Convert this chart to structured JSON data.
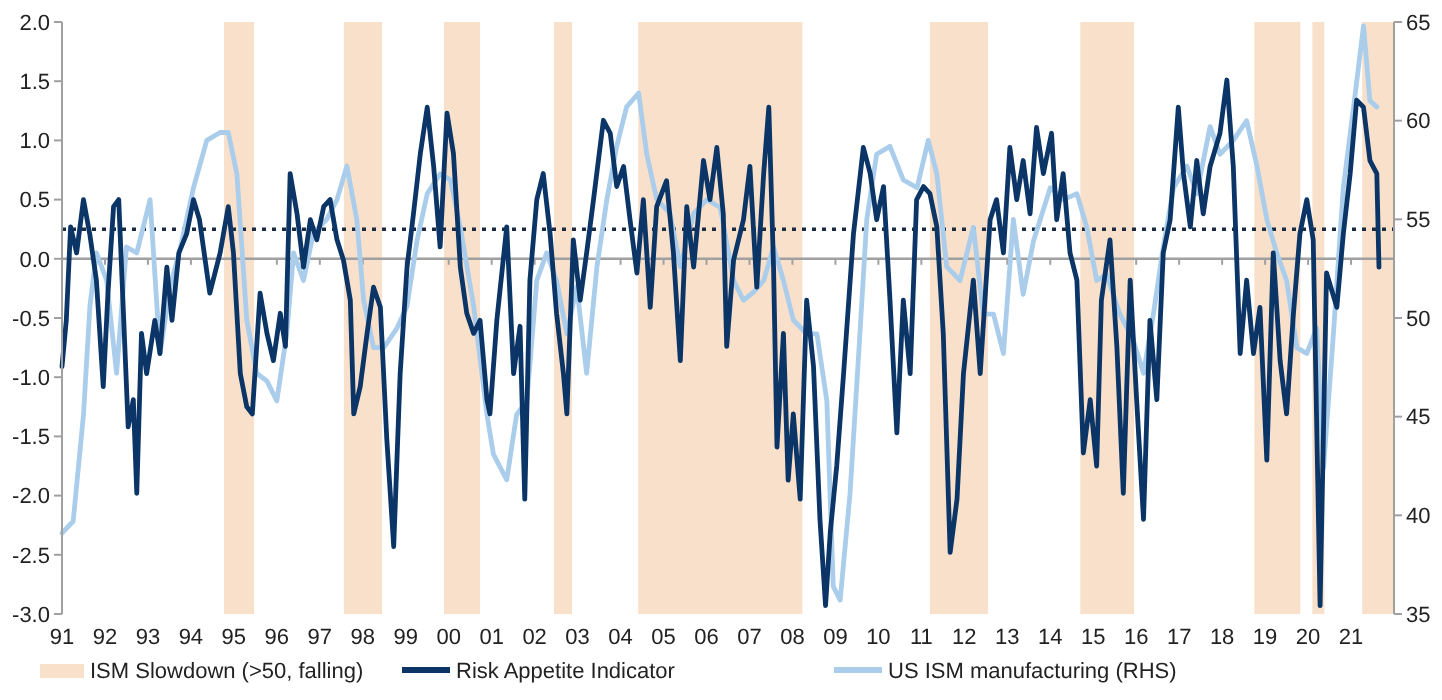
{
  "chart_data": {
    "type": "line",
    "xlim": [
      1991,
      2022
    ],
    "xticks": [
      {
        "value": 1991,
        "label": "91"
      },
      {
        "value": 1992,
        "label": "92"
      },
      {
        "value": 1993,
        "label": "93"
      },
      {
        "value": 1994,
        "label": "94"
      },
      {
        "value": 1995,
        "label": "95"
      },
      {
        "value": 1996,
        "label": "96"
      },
      {
        "value": 1997,
        "label": "97"
      },
      {
        "value": 1998,
        "label": "98"
      },
      {
        "value": 1999,
        "label": "99"
      },
      {
        "value": 2000,
        "label": "00"
      },
      {
        "value": 2001,
        "label": "01"
      },
      {
        "value": 2002,
        "label": "02"
      },
      {
        "value": 2003,
        "label": "03"
      },
      {
        "value": 2004,
        "label": "04"
      },
      {
        "value": 2005,
        "label": "05"
      },
      {
        "value": 2006,
        "label": "06"
      },
      {
        "value": 2007,
        "label": "07"
      },
      {
        "value": 2008,
        "label": "08"
      },
      {
        "value": 2009,
        "label": "09"
      },
      {
        "value": 2010,
        "label": "10"
      },
      {
        "value": 2011,
        "label": "11"
      },
      {
        "value": 2012,
        "label": "12"
      },
      {
        "value": 2013,
        "label": "13"
      },
      {
        "value": 2014,
        "label": "14"
      },
      {
        "value": 2015,
        "label": "15"
      },
      {
        "value": 2016,
        "label": "16"
      },
      {
        "value": 2017,
        "label": "17"
      },
      {
        "value": 2018,
        "label": "18"
      },
      {
        "value": 2019,
        "label": "19"
      },
      {
        "value": 2020,
        "label": "20"
      },
      {
        "value": 2021,
        "label": "21"
      }
    ],
    "ylim": [
      -3,
      2
    ],
    "yticks": [
      {
        "value": -3,
        "label": "-3.0"
      },
      {
        "value": -2.5,
        "label": "-2.5"
      },
      {
        "value": -2,
        "label": "-2.0"
      },
      {
        "value": -1.5,
        "label": "-1.5"
      },
      {
        "value": -1,
        "label": "-1.0"
      },
      {
        "value": -0.5,
        "label": "-0.5"
      },
      {
        "value": 0,
        "label": "0.0"
      },
      {
        "value": 0.5,
        "label": "0.5"
      },
      {
        "value": 1,
        "label": "1.0"
      },
      {
        "value": 1.5,
        "label": "1.5"
      },
      {
        "value": 2,
        "label": "2.0"
      }
    ],
    "y2lim": [
      35,
      65
    ],
    "y2ticks": [
      35,
      40,
      45,
      50,
      55,
      60,
      65
    ],
    "legend": "bottom",
    "grid": false,
    "bands": [
      {
        "axis": "x",
        "from": 1994.77,
        "to": 1995.47,
        "label": "ISM Slowdown (>50, falling)",
        "color": "#f9e0cb"
      },
      {
        "axis": "x",
        "from": 1997.56,
        "to": 1998.45,
        "color": "#f9e0cb"
      },
      {
        "axis": "x",
        "from": 1999.89,
        "to": 2000.73,
        "color": "#f9e0cb"
      },
      {
        "axis": "x",
        "from": 2002.45,
        "to": 2002.87,
        "color": "#f9e0cb"
      },
      {
        "axis": "x",
        "from": 2004.41,
        "to": 2008.23,
        "color": "#f9e0cb"
      },
      {
        "axis": "x",
        "from": 2011.2,
        "to": 2012.55,
        "color": "#f9e0cb"
      },
      {
        "axis": "x",
        "from": 2014.7,
        "to": 2015.95,
        "color": "#f9e0cb"
      },
      {
        "axis": "x",
        "from": 2018.75,
        "to": 2019.82,
        "color": "#f9e0cb"
      },
      {
        "axis": "x",
        "from": 2020.1,
        "to": 2020.38,
        "color": "#f9e0cb"
      },
      {
        "axis": "x",
        "from": 2021.26,
        "to": 2022,
        "color": "#f9e0cb"
      }
    ],
    "ref_lines": [
      {
        "axis": "y",
        "value": 0,
        "color": "#a0a0a0",
        "line_style": "solid"
      },
      {
        "axis": "y",
        "value": 0.25,
        "color": "#1a2a40",
        "line_style": "dotted"
      }
    ],
    "series": [
      {
        "name": "Risk Appetite Indicator",
        "color": "#0b3566",
        "axis": "y",
        "x": [
          1991.0,
          1991.1,
          1991.2,
          1991.34,
          1991.5,
          1991.65,
          1991.8,
          1991.96,
          1992.07,
          1992.2,
          1992.32,
          1992.43,
          1992.54,
          1992.66,
          1992.74,
          1992.85,
          1992.97,
          1993.16,
          1993.28,
          1993.44,
          1993.56,
          1993.72,
          1993.9,
          1994.06,
          1994.2,
          1994.44,
          1994.68,
          1994.87,
          1994.99,
          1995.15,
          1995.3,
          1995.43,
          1995.61,
          1995.77,
          1995.92,
          1996.08,
          1996.2,
          1996.31,
          1996.47,
          1996.62,
          1996.78,
          1996.93,
          1997.09,
          1997.24,
          1997.4,
          1997.55,
          1997.71,
          1997.79,
          1997.94,
          1998.1,
          1998.25,
          1998.41,
          1998.56,
          1998.72,
          1998.87,
          1999.03,
          1999.18,
          1999.34,
          1999.5,
          1999.65,
          1999.8,
          1999.96,
          2000.11,
          2000.27,
          2000.42,
          2000.58,
          2000.73,
          2000.89,
          2000.96,
          2001.12,
          2001.35,
          2001.51,
          2001.66,
          2001.77,
          2001.89,
          2002.05,
          2002.2,
          2002.36,
          2002.51,
          2002.67,
          2002.75,
          2002.9,
          2003.06,
          2003.21,
          2003.37,
          2003.6,
          2003.76,
          2003.91,
          2004.07,
          2004.22,
          2004.38,
          2004.53,
          2004.69,
          2004.84,
          2005.07,
          2005.23,
          2005.39,
          2005.54,
          2005.7,
          2005.93,
          2006.08,
          2006.24,
          2006.39,
          2006.47,
          2006.63,
          2006.86,
          2007.01,
          2007.17,
          2007.33,
          2007.45,
          2007.56,
          2007.64,
          2007.79,
          2007.9,
          2008.02,
          2008.18,
          2008.33,
          2008.49,
          2008.64,
          2008.77,
          2008.88,
          2009.03,
          2009.19,
          2009.42,
          2009.65,
          2009.81,
          2009.96,
          2010.12,
          2010.27,
          2010.43,
          2010.58,
          2010.74,
          2010.89,
          2011.05,
          2011.2,
          2011.36,
          2011.51,
          2011.67,
          2011.83,
          2011.98,
          2012.21,
          2012.37,
          2012.6,
          2012.75,
          2012.91,
          2013.06,
          2013.22,
          2013.37,
          2013.53,
          2013.68,
          2013.84,
          2014.03,
          2014.15,
          2014.3,
          2014.46,
          2014.62,
          2014.77,
          2014.93,
          2015.08,
          2015.19,
          2015.39,
          2015.55,
          2015.7,
          2015.86,
          2016.01,
          2016.17,
          2016.32,
          2016.48,
          2016.63,
          2016.79,
          2016.98,
          2017.1,
          2017.26,
          2017.41,
          2017.56,
          2017.72,
          2017.95,
          2018.11,
          2018.26,
          2018.42,
          2018.57,
          2018.73,
          2018.88,
          2019.04,
          2019.19,
          2019.35,
          2019.5,
          2019.66,
          2019.81,
          2019.97,
          2020.12,
          2020.28,
          2020.43,
          2020.67,
          2020.82,
          2020.98,
          2021.13,
          2021.29,
          2021.44,
          2021.6,
          2021.65
        ],
        "values": [
          -0.91,
          -0.52,
          0.27,
          0.05,
          0.5,
          0.2,
          -0.18,
          -1.08,
          -0.29,
          0.44,
          0.5,
          -0.46,
          -1.42,
          -1.19,
          -1.98,
          -0.63,
          -0.97,
          -0.52,
          -0.8,
          -0.07,
          -0.52,
          0.05,
          0.21,
          0.5,
          0.33,
          -0.29,
          0.05,
          0.44,
          0.05,
          -0.97,
          -1.25,
          -1.31,
          -0.29,
          -0.63,
          -0.86,
          -0.46,
          -0.74,
          0.72,
          0.38,
          -0.07,
          0.33,
          0.16,
          0.44,
          0.5,
          0.16,
          -0.01,
          -0.35,
          -1.31,
          -1.08,
          -0.63,
          -0.24,
          -0.41,
          -1.53,
          -2.43,
          -0.97,
          -0.07,
          0.38,
          0.89,
          1.28,
          0.78,
          0.1,
          1.23,
          0.89,
          -0.07,
          -0.46,
          -0.63,
          -0.52,
          -1.19,
          -1.31,
          -0.52,
          0.27,
          -0.97,
          -0.57,
          -2.03,
          -0.18,
          0.5,
          0.72,
          0.21,
          -0.46,
          -0.97,
          -1.31,
          0.16,
          -0.35,
          0.05,
          0.5,
          1.17,
          1.06,
          0.61,
          0.78,
          0.33,
          -0.12,
          0.5,
          -0.41,
          0.44,
          0.66,
          0.05,
          -0.86,
          0.44,
          -0.07,
          0.83,
          0.5,
          0.94,
          0.38,
          -0.74,
          -0.01,
          0.33,
          0.78,
          -0.24,
          0.72,
          1.28,
          -0.07,
          -1.59,
          -0.63,
          -1.87,
          -1.31,
          -2.03,
          -0.35,
          -0.91,
          -2.2,
          -2.93,
          -2.31,
          -1.75,
          -0.97,
          0.21,
          0.94,
          0.72,
          0.33,
          0.61,
          -0.35,
          -1.47,
          -0.35,
          -0.97,
          0.5,
          0.61,
          0.55,
          0.27,
          -0.63,
          -2.48,
          -2.03,
          -0.97,
          -0.18,
          -0.97,
          0.33,
          0.5,
          0.05,
          0.94,
          0.5,
          0.83,
          0.38,
          1.11,
          0.72,
          1.06,
          0.33,
          0.72,
          0.05,
          -0.18,
          -1.64,
          -1.19,
          -1.75,
          -0.35,
          0.16,
          -0.74,
          -1.98,
          -0.18,
          -1.19,
          -2.2,
          -0.52,
          -1.19,
          0.05,
          0.33,
          1.28,
          0.72,
          0.27,
          0.83,
          0.38,
          0.78,
          1.06,
          1.51,
          0.78,
          -0.8,
          -0.18,
          -0.8,
          -0.41,
          -1.7,
          0.05,
          -0.86,
          -1.31,
          -0.46,
          0.21,
          0.5,
          0.16,
          -2.93,
          -0.12,
          -0.41,
          0.21,
          0.72,
          1.34,
          1.28,
          0.83,
          0.72,
          -0.07
        ]
      },
      {
        "name": "US ISM manufacturing (RHS)",
        "color": "#a9cdeb",
        "axis": "y2",
        "x": [
          1991.0,
          1991.26,
          1991.5,
          1991.65,
          1991.8,
          1992.04,
          1992.27,
          1992.5,
          1992.74,
          1993.05,
          1993.28,
          1993.52,
          1993.76,
          1994.06,
          1994.37,
          1994.68,
          1994.87,
          1995.07,
          1995.3,
          1995.53,
          1995.77,
          1996.0,
          1996.23,
          1996.39,
          1996.62,
          1996.85,
          1997.16,
          1997.4,
          1997.63,
          1997.86,
          1998.02,
          1998.25,
          1998.49,
          1998.8,
          1999.03,
          1999.26,
          1999.5,
          1999.8,
          2000.04,
          2000.27,
          2000.58,
          2000.89,
          2001.04,
          2001.35,
          2001.58,
          2001.82,
          2002.05,
          2002.28,
          2002.51,
          2002.75,
          2002.98,
          2003.21,
          2003.45,
          2003.68,
          2003.91,
          2004.14,
          2004.42,
          2004.61,
          2004.84,
          2005.15,
          2005.39,
          2005.7,
          2006.01,
          2006.32,
          2006.63,
          2006.86,
          2007.09,
          2007.33,
          2007.56,
          2007.79,
          2008.02,
          2008.33,
          2008.57,
          2008.8,
          2008.95,
          2009.11,
          2009.34,
          2009.57,
          2009.73,
          2009.96,
          2010.27,
          2010.58,
          2010.9,
          2011.16,
          2011.36,
          2011.59,
          2011.9,
          2012.21,
          2012.44,
          2012.68,
          2012.91,
          2013.14,
          2013.37,
          2013.61,
          2014.0,
          2014.31,
          2014.62,
          2014.85,
          2015.08,
          2015.31,
          2015.62,
          2015.93,
          2016.17,
          2016.4,
          2016.63,
          2016.87,
          2017.18,
          2017.41,
          2017.72,
          2017.95,
          2018.26,
          2018.57,
          2018.81,
          2019.04,
          2019.27,
          2019.5,
          2019.74,
          2019.97,
          2020.2,
          2020.36,
          2020.59,
          2020.82,
          2021.06,
          2021.29,
          2021.44,
          2021.6
        ],
        "values": [
          39.1,
          39.7,
          45.1,
          50.6,
          53.3,
          51.9,
          47.2,
          53.6,
          53.3,
          56.0,
          48.2,
          51.6,
          53.6,
          56.6,
          59.0,
          59.4,
          59.4,
          57.3,
          49.9,
          47.2,
          46.8,
          45.8,
          49.2,
          53.3,
          51.9,
          54.3,
          55.0,
          56.0,
          57.7,
          55.0,
          50.9,
          48.5,
          48.5,
          49.5,
          50.6,
          53.9,
          56.3,
          57.3,
          57.0,
          54.6,
          50.6,
          45.1,
          43.1,
          41.8,
          45.1,
          45.8,
          51.9,
          53.3,
          51.9,
          49.2,
          51.6,
          47.2,
          52.6,
          56.0,
          58.7,
          60.7,
          61.4,
          58.3,
          56.0,
          55.3,
          52.6,
          55.3,
          56.0,
          55.6,
          51.9,
          50.9,
          51.3,
          51.9,
          53.6,
          51.9,
          49.9,
          49.2,
          49.2,
          45.8,
          36.4,
          35.7,
          41.1,
          49.2,
          55.0,
          58.3,
          58.7,
          57.0,
          56.6,
          59.0,
          57.3,
          52.6,
          51.9,
          54.6,
          50.2,
          50.2,
          48.2,
          55.0,
          51.2,
          53.9,
          56.6,
          56.0,
          56.3,
          54.6,
          51.9,
          52.2,
          50.2,
          48.9,
          47.2,
          50.2,
          53.6,
          56.6,
          57.7,
          56.3,
          59.7,
          58.3,
          59.0,
          60.0,
          57.7,
          55.0,
          53.3,
          51.9,
          48.5,
          48.2,
          49.5,
          42.4,
          49.2,
          56.6,
          60.7,
          64.8,
          61.0,
          60.7
        ]
      }
    ]
  }
}
